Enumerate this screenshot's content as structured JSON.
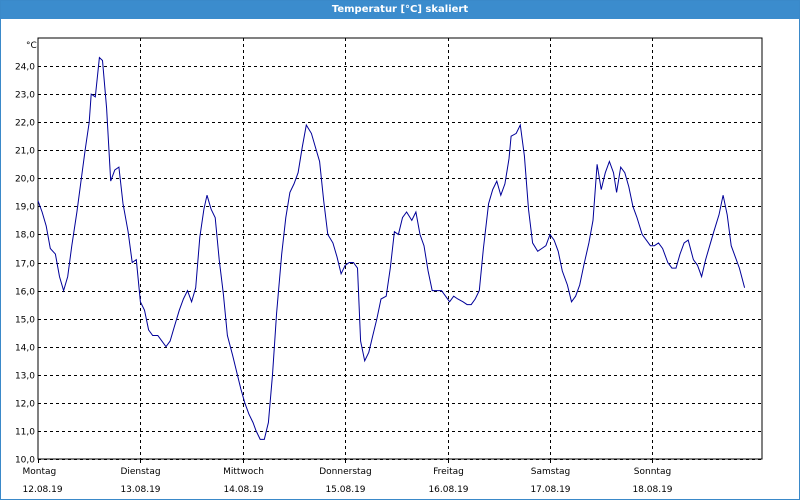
{
  "window": {
    "title": "Temperatur [°C] skaliert"
  },
  "colors": {
    "titlebar": "#3b8ccd",
    "line": "#000099",
    "grid": "#000000"
  },
  "chart_data": {
    "type": "line",
    "title": "Temperatur [°C] skaliert",
    "ylabel": "°C",
    "xlabel": "",
    "ylim": [
      10.0,
      25.0
    ],
    "yticks": [
      "10,0",
      "11,0",
      "12,0",
      "13,0",
      "14,0",
      "15,0",
      "16,0",
      "17,0",
      "18,0",
      "19,0",
      "20,0",
      "21,0",
      "22,0",
      "23,0",
      "24,0"
    ],
    "xticks": [
      {
        "day": "Montag",
        "date": "12.08.19"
      },
      {
        "day": "Dienstag",
        "date": "13.08.19"
      },
      {
        "day": "Mittwoch",
        "date": "14.08.19"
      },
      {
        "day": "Donnerstag",
        "date": "15.08.19"
      },
      {
        "day": "Freitag",
        "date": "16.08.19"
      },
      {
        "day": "Samstag",
        "date": "17.08.19"
      },
      {
        "day": "Sonntag",
        "date": "18.08.19"
      }
    ],
    "x_unit": "days since 12.08.19 00:00",
    "grid": true,
    "series": [
      {
        "points": [
          [
            0.0,
            19.2
          ],
          [
            0.04,
            18.8
          ],
          [
            0.08,
            18.3
          ],
          [
            0.12,
            17.5
          ],
          [
            0.17,
            17.3
          ],
          [
            0.21,
            16.5
          ],
          [
            0.25,
            16.0
          ],
          [
            0.29,
            16.5
          ],
          [
            0.33,
            17.6
          ],
          [
            0.38,
            18.8
          ],
          [
            0.42,
            19.9
          ],
          [
            0.46,
            21.0
          ],
          [
            0.5,
            22.0
          ],
          [
            0.52,
            23.0
          ],
          [
            0.56,
            22.9
          ],
          [
            0.6,
            24.3
          ],
          [
            0.63,
            24.2
          ],
          [
            0.67,
            22.5
          ],
          [
            0.71,
            19.9
          ],
          [
            0.75,
            20.3
          ],
          [
            0.79,
            20.4
          ],
          [
            0.83,
            19.1
          ],
          [
            0.88,
            18.1
          ],
          [
            0.92,
            17.0
          ],
          [
            0.96,
            17.1
          ],
          [
            1.0,
            15.6
          ],
          [
            1.04,
            15.3
          ],
          [
            1.08,
            14.6
          ],
          [
            1.12,
            14.4
          ],
          [
            1.17,
            14.4
          ],
          [
            1.21,
            14.2
          ],
          [
            1.25,
            14.0
          ],
          [
            1.29,
            14.2
          ],
          [
            1.33,
            14.7
          ],
          [
            1.38,
            15.3
          ],
          [
            1.42,
            15.7
          ],
          [
            1.46,
            16.0
          ],
          [
            1.5,
            15.6
          ],
          [
            1.54,
            16.1
          ],
          [
            1.58,
            17.9
          ],
          [
            1.62,
            18.9
          ],
          [
            1.65,
            19.4
          ],
          [
            1.69,
            18.9
          ],
          [
            1.73,
            18.6
          ],
          [
            1.77,
            17.1
          ],
          [
            1.81,
            15.9
          ],
          [
            1.85,
            14.4
          ],
          [
            1.9,
            13.7
          ],
          [
            1.94,
            13.1
          ],
          [
            1.98,
            12.5
          ],
          [
            2.02,
            12.0
          ],
          [
            2.06,
            11.6
          ],
          [
            2.1,
            11.3
          ],
          [
            2.13,
            11.0
          ],
          [
            2.17,
            10.7
          ],
          [
            2.21,
            10.7
          ],
          [
            2.25,
            11.3
          ],
          [
            2.29,
            13.0
          ],
          [
            2.33,
            15.2
          ],
          [
            2.38,
            17.3
          ],
          [
            2.42,
            18.6
          ],
          [
            2.46,
            19.5
          ],
          [
            2.5,
            19.8
          ],
          [
            2.54,
            20.2
          ],
          [
            2.58,
            21.1
          ],
          [
            2.62,
            21.9
          ],
          [
            2.67,
            21.6
          ],
          [
            2.71,
            21.1
          ],
          [
            2.75,
            20.6
          ],
          [
            2.79,
            19.2
          ],
          [
            2.83,
            18.0
          ],
          [
            2.88,
            17.7
          ],
          [
            2.92,
            17.2
          ],
          [
            2.96,
            16.6
          ],
          [
            3.0,
            16.9
          ],
          [
            3.04,
            17.0
          ],
          [
            3.08,
            17.0
          ],
          [
            3.12,
            16.8
          ],
          [
            3.15,
            14.2
          ],
          [
            3.19,
            13.5
          ],
          [
            3.23,
            13.8
          ],
          [
            3.27,
            14.4
          ],
          [
            3.31,
            15.0
          ],
          [
            3.35,
            15.7
          ],
          [
            3.4,
            15.8
          ],
          [
            3.44,
            16.8
          ],
          [
            3.48,
            18.1
          ],
          [
            3.52,
            18.0
          ],
          [
            3.56,
            18.6
          ],
          [
            3.6,
            18.8
          ],
          [
            3.65,
            18.5
          ],
          [
            3.69,
            18.8
          ],
          [
            3.73,
            18.0
          ],
          [
            3.77,
            17.6
          ],
          [
            3.81,
            16.7
          ],
          [
            3.85,
            16.0
          ],
          [
            3.9,
            16.0
          ],
          [
            3.94,
            16.0
          ],
          [
            3.98,
            15.8
          ],
          [
            4.02,
            15.6
          ],
          [
            4.06,
            15.8
          ],
          [
            4.1,
            15.7
          ],
          [
            4.15,
            15.6
          ],
          [
            4.19,
            15.5
          ],
          [
            4.23,
            15.5
          ],
          [
            4.27,
            15.7
          ],
          [
            4.31,
            16.0
          ],
          [
            4.35,
            17.5
          ],
          [
            4.4,
            19.1
          ],
          [
            4.44,
            19.6
          ],
          [
            4.48,
            19.9
          ],
          [
            4.52,
            19.4
          ],
          [
            4.56,
            19.8
          ],
          [
            4.6,
            20.7
          ],
          [
            4.62,
            21.5
          ],
          [
            4.67,
            21.6
          ],
          [
            4.71,
            21.9
          ],
          [
            4.75,
            20.8
          ],
          [
            4.79,
            18.9
          ],
          [
            4.83,
            17.7
          ],
          [
            4.88,
            17.4
          ],
          [
            4.92,
            17.5
          ],
          [
            4.96,
            17.6
          ],
          [
            5.0,
            18.0
          ],
          [
            5.04,
            17.8
          ],
          [
            5.08,
            17.4
          ],
          [
            5.12,
            16.7
          ],
          [
            5.17,
            16.2
          ],
          [
            5.21,
            15.6
          ],
          [
            5.25,
            15.8
          ],
          [
            5.29,
            16.2
          ],
          [
            5.33,
            16.9
          ],
          [
            5.38,
            17.7
          ],
          [
            5.42,
            18.5
          ],
          [
            5.46,
            20.5
          ],
          [
            5.5,
            19.6
          ],
          [
            5.54,
            20.2
          ],
          [
            5.58,
            20.6
          ],
          [
            5.62,
            20.2
          ],
          [
            5.65,
            19.5
          ],
          [
            5.69,
            20.4
          ],
          [
            5.73,
            20.2
          ],
          [
            5.77,
            19.7
          ],
          [
            5.81,
            19.0
          ],
          [
            5.85,
            18.6
          ],
          [
            5.9,
            18.0
          ],
          [
            5.94,
            17.8
          ],
          [
            5.98,
            17.6
          ],
          [
            6.02,
            17.6
          ],
          [
            6.06,
            17.7
          ],
          [
            6.1,
            17.5
          ],
          [
            6.15,
            17.0
          ],
          [
            6.19,
            16.8
          ],
          [
            6.23,
            16.8
          ],
          [
            6.27,
            17.3
          ],
          [
            6.31,
            17.7
          ],
          [
            6.35,
            17.8
          ],
          [
            6.4,
            17.1
          ],
          [
            6.44,
            16.9
          ],
          [
            6.48,
            16.5
          ],
          [
            6.52,
            17.1
          ],
          [
            6.56,
            17.6
          ],
          [
            6.6,
            18.1
          ],
          [
            6.65,
            18.7
          ],
          [
            6.69,
            19.4
          ],
          [
            6.73,
            18.7
          ],
          [
            6.77,
            17.6
          ],
          [
            6.81,
            17.2
          ],
          [
            6.85,
            16.8
          ],
          [
            6.9,
            16.1
          ]
        ]
      }
    ]
  }
}
